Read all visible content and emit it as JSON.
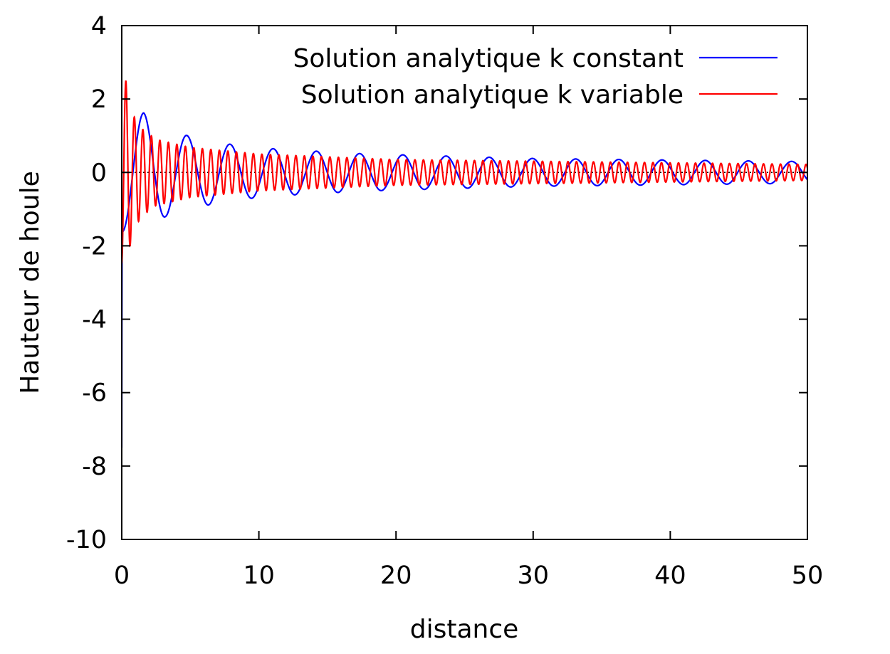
{
  "chart_data": {
    "type": "line",
    "title": "",
    "xlabel": "distance",
    "ylabel": "Hauteur de houle",
    "xlim": [
      0,
      50
    ],
    "ylim": [
      -10,
      4
    ],
    "x_ticks": [
      0,
      10,
      20,
      30,
      40,
      50
    ],
    "y_ticks": [
      -10,
      -8,
      -6,
      -4,
      -2,
      0,
      2,
      4
    ],
    "grid": false,
    "zero_line": "dotted",
    "legend_position": "top-right",
    "series": [
      {
        "name": "Solution analytique k constant",
        "color": "#0000ff",
        "start_value": -7.5,
        "wavelength": 3.15,
        "first_peak": {
          "x": 1.6,
          "y": 1.62
        },
        "peak_amplitude_at_x": [
          {
            "x": 1.6,
            "y": 1.62
          },
          {
            "x": 3.2,
            "y": 1.2
          },
          {
            "x": 4.8,
            "y": 1.0
          },
          {
            "x": 8.0,
            "y": 0.76
          },
          {
            "x": 11.2,
            "y": 0.64
          },
          {
            "x": 17.5,
            "y": 0.51
          },
          {
            "x": 30.0,
            "y": 0.38
          },
          {
            "x": 49.0,
            "y": 0.3
          }
        ]
      },
      {
        "name": "Solution analytique k variable",
        "color": "#ff0000",
        "start_value": -8.5,
        "wavelength": 0.62,
        "first_peak": {
          "x": 0.3,
          "y": 2.5
        },
        "peak_amplitude_at_x": [
          {
            "x": 0.3,
            "y": 2.5
          },
          {
            "x": 0.9,
            "y": 1.52
          },
          {
            "x": 1.5,
            "y": 1.18
          },
          {
            "x": 2.5,
            "y": 0.9
          },
          {
            "x": 5.0,
            "y": 0.68
          },
          {
            "x": 10.0,
            "y": 0.5
          },
          {
            "x": 20.0,
            "y": 0.35
          },
          {
            "x": 50.0,
            "y": 0.22
          }
        ]
      }
    ]
  }
}
